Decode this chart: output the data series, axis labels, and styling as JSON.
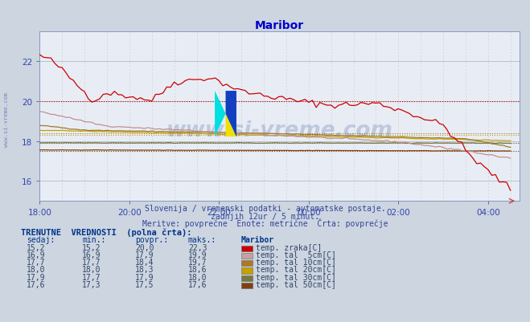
{
  "title": "Maribor",
  "title_color": "#0000cc",
  "bg_color": "#ccd5e0",
  "plot_bg_color": "#e8edf5",
  "xlabel_times": [
    "18:00",
    "20:00",
    "22:00",
    "00:00",
    "02:00",
    "04:00"
  ],
  "ylim": [
    15.0,
    23.5
  ],
  "yticks": [
    16,
    18,
    20,
    22
  ],
  "subtitle1": "Slovenija / vremenski podatki - avtomatske postaje.",
  "subtitle2": "zadnjih 12ur / 5 minut.",
  "subtitle3": "Meritve: povprečne  Enote: metrične  Črta: povprečje",
  "table_header": "TRENUTNE  VREDNOSTI  (polna črta):",
  "col_headers": [
    "sedaj:",
    "min.:",
    "povpr.:",
    "maks.:",
    "Maribor"
  ],
  "rows": [
    {
      "sedaj": "15,2",
      "min": "15,2",
      "povpr": "20,0",
      "maks": "22,3",
      "label": "temp. zraka[C]",
      "color": "#cc0000"
    },
    {
      "sedaj": "16,9",
      "min": "16,9",
      "povpr": "17,9",
      "maks": "19,9",
      "label": "temp. tal  5cm[C]",
      "color": "#c8a0a0"
    },
    {
      "sedaj": "17,7",
      "min": "17,7",
      "povpr": "18,4",
      "maks": "19,7",
      "label": "temp. tal 10cm[C]",
      "color": "#b07820"
    },
    {
      "sedaj": "18,0",
      "min": "18,0",
      "povpr": "18,3",
      "maks": "18,6",
      "label": "temp. tal 20cm[C]",
      "color": "#c8a000"
    },
    {
      "sedaj": "17,9",
      "min": "17,7",
      "povpr": "17,9",
      "maks": "18,0",
      "label": "temp. tal 30cm[C]",
      "color": "#787840"
    },
    {
      "sedaj": "17,6",
      "min": "17,3",
      "povpr": "17,5",
      "maks": "17,6",
      "label": "temp. tal 50cm[C]",
      "color": "#804010"
    }
  ],
  "line_colors": [
    "#cc0000",
    "#c09090",
    "#a07828",
    "#c8a000",
    "#787840",
    "#804010"
  ],
  "avg_values": [
    20.0,
    17.9,
    18.4,
    18.3,
    17.9,
    17.5
  ],
  "watermark": "www.si-vreme.com"
}
